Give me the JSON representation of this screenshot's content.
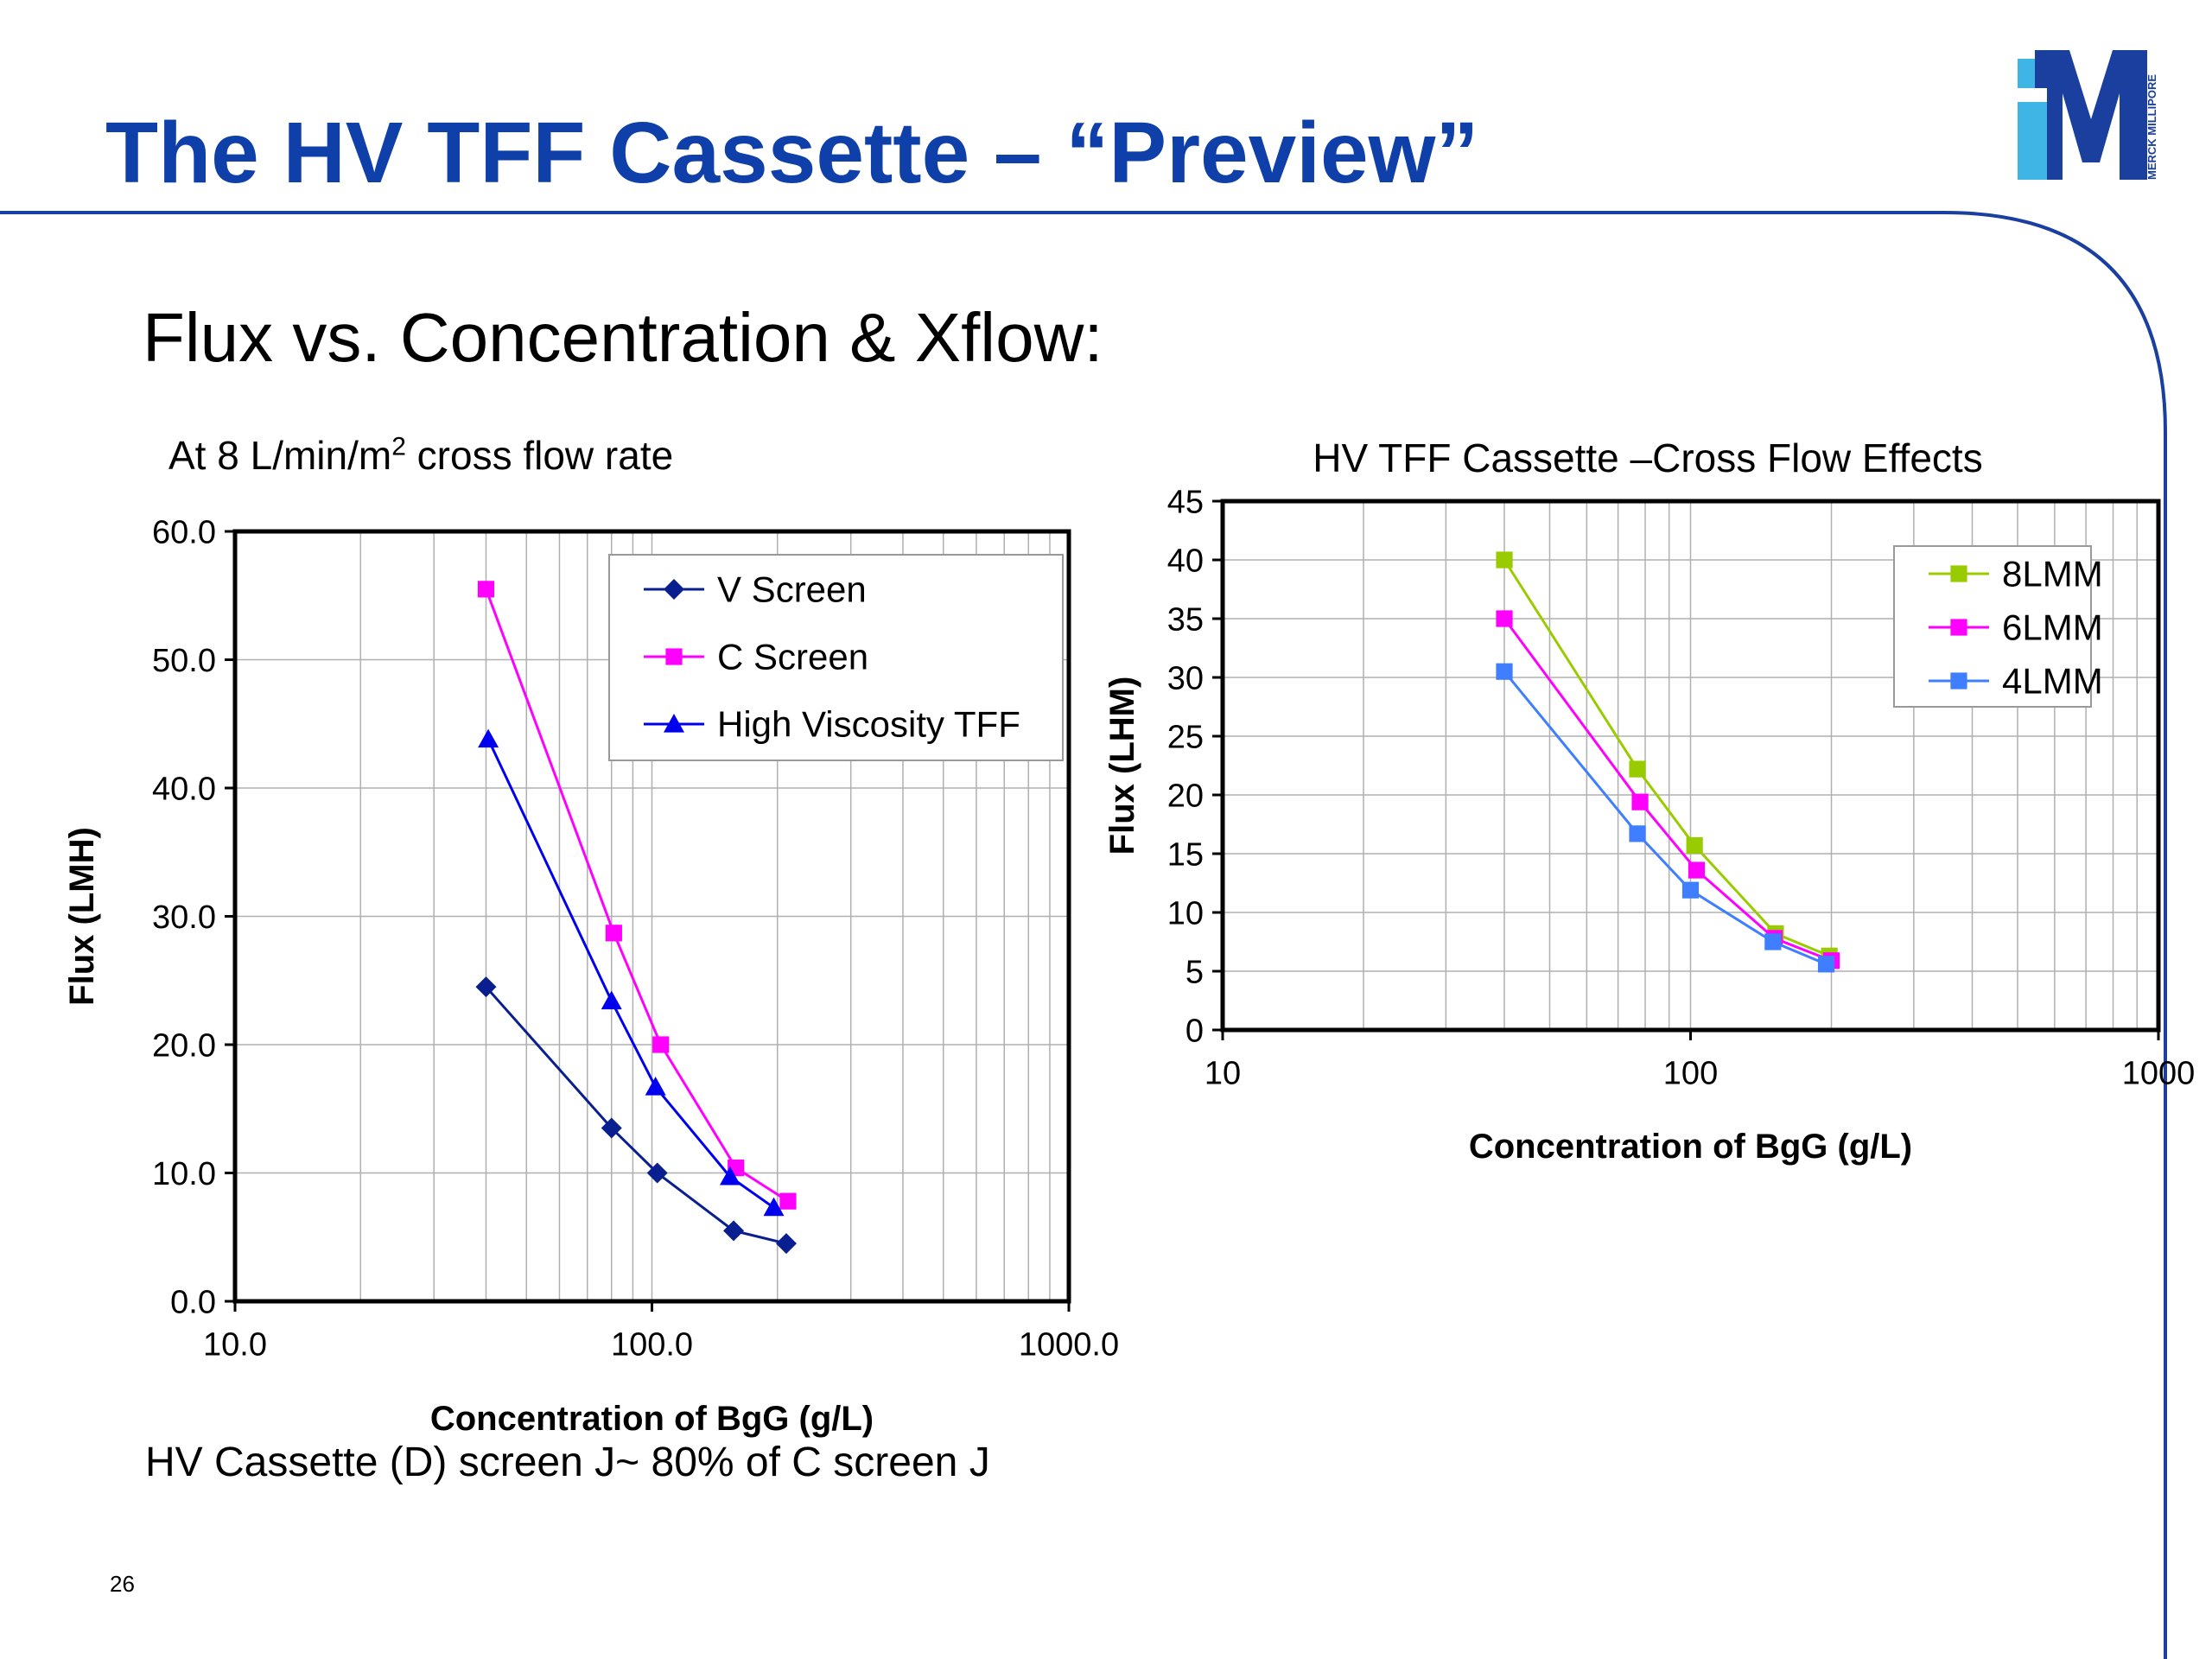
{
  "slide": {
    "title": "The HV TFF Cassette – “Preview”",
    "subtitle": "Flux vs. Concentration & Xflow:",
    "left_caption_pre": "At 8 L/min/m",
    "left_caption_sup": "2",
    "left_caption_post": " cross flow rate",
    "bottom_note": "HV Cassette (D) screen J~ 80% of C screen J",
    "page_number": "26",
    "logo_text": "MERCK MILLIPORE",
    "colors": {
      "title": "#0f3fa8",
      "frame": "#1a3fa0",
      "logo_dark": "#1a3f9e",
      "logo_light": "#3fb5e5"
    }
  },
  "chart_data": [
    {
      "type": "line",
      "title": "",
      "xlabel": "Concentration of BgG (g/L)",
      "ylabel": "Flux (LMH)",
      "xscale": "log",
      "xlim": [
        10,
        1000
      ],
      "ylim": [
        0,
        60
      ],
      "x_ticks": [
        "10.0",
        "100.0",
        "1000.0"
      ],
      "y_ticks": [
        "0.0",
        "10.0",
        "20.0",
        "30.0",
        "40.0",
        "50.0",
        "60.0"
      ],
      "grid": true,
      "legend_position": "top-right",
      "series": [
        {
          "name": "V Screen",
          "color": "#0a1f8f",
          "marker": "diamond",
          "x": [
            40,
            80,
            103,
            157,
            210
          ],
          "y": [
            24.5,
            13.5,
            10.0,
            5.5,
            4.5
          ]
        },
        {
          "name": "C Screen",
          "color": "#ff00ff",
          "marker": "square",
          "x": [
            40,
            81,
            105,
            159,
            212
          ],
          "y": [
            55.5,
            28.7,
            20.0,
            10.4,
            7.8
          ]
        },
        {
          "name": "High Viscosity TFF",
          "color": "#0000ee",
          "marker": "triangle",
          "x": [
            40.5,
            80,
            102,
            154,
            196
          ],
          "y": [
            43.8,
            23.4,
            16.7,
            9.7,
            7.3
          ]
        }
      ]
    },
    {
      "type": "line",
      "title": "HV TFF Cassette –Cross Flow Effects",
      "xlabel": "Concentration of BgG (g/L)",
      "ylabel": "Flux (LHM)",
      "xscale": "log",
      "xlim": [
        10,
        1000
      ],
      "ylim": [
        0,
        45
      ],
      "x_ticks": [
        "10",
        "100",
        "1000"
      ],
      "y_ticks": [
        "0",
        "5",
        "10",
        "15",
        "20",
        "25",
        "30",
        "35",
        "40",
        "45"
      ],
      "grid": true,
      "legend_position": "top-right",
      "series": [
        {
          "name": "8LMM",
          "color": "#99cc00",
          "marker": "square",
          "x": [
            40,
            77,
            102,
            152,
            198
          ],
          "y": [
            40.0,
            22.2,
            15.7,
            8.2,
            6.3
          ]
        },
        {
          "name": "6LMM",
          "color": "#ff00ff",
          "marker": "square",
          "x": [
            40,
            78,
            103,
            151,
            200
          ],
          "y": [
            35.0,
            19.4,
            13.6,
            7.8,
            5.9
          ]
        },
        {
          "name": "4LMM",
          "color": "#3f7fff",
          "marker": "square",
          "x": [
            40,
            77,
            100,
            150,
            195
          ],
          "y": [
            30.5,
            16.7,
            11.9,
            7.5,
            5.6
          ]
        }
      ]
    }
  ]
}
